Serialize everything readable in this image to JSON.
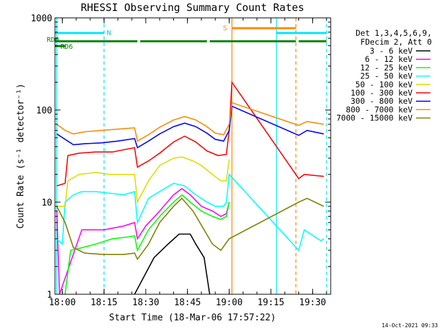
{
  "chart_data": {
    "type": "line",
    "title": "RHESSI Observing Summary Count Rates",
    "xlabel": "Start Time (18-Mar-06 17:57:22)",
    "ylabel": "Count Rate (s⁻¹ detector⁻¹)",
    "y_scale": "log",
    "ylim": [
      1,
      1000
    ],
    "xlim": [
      "17:57:22",
      "19:36:30"
    ],
    "x_ticks": [
      "18:00",
      "18:15",
      "18:30",
      "18:45",
      "19:00",
      "19:15",
      "19:30"
    ],
    "y_ticks": [
      "1",
      "10",
      "100",
      "1000"
    ],
    "legend_header": [
      "Det 1,3,4,5,6,9,",
      "FDecim 2, Att 0"
    ],
    "legend_position": "right",
    "grid": false,
    "series": [
      {
        "name": "3 - 6 keV",
        "color": "#000000",
        "points": [
          [
            "18:26",
            1
          ],
          [
            "18:33",
            2.5
          ],
          [
            "18:38",
            3.5
          ],
          [
            "18:42",
            4.5
          ],
          [
            "18:46",
            4.5
          ],
          [
            "18:48",
            3.5
          ],
          [
            "18:51",
            2.5
          ],
          [
            "18:53",
            1
          ]
        ]
      },
      {
        "name": "6 - 12 keV",
        "color": "#ff00ff",
        "points": [
          [
            "17:58",
            8
          ],
          [
            "17:59",
            1
          ],
          [
            "18:07",
            5
          ],
          [
            "18:15",
            5
          ],
          [
            "18:22",
            5.5
          ],
          [
            "18:26",
            6
          ],
          [
            "18:27",
            4
          ],
          [
            "18:30",
            5.5
          ],
          [
            "18:35",
            8
          ],
          [
            "18:40",
            12
          ],
          [
            "18:43",
            14
          ],
          [
            "18:46",
            12
          ],
          [
            "18:50",
            9
          ],
          [
            "18:54",
            8
          ],
          [
            "18:57",
            7
          ],
          [
            "18:59",
            7.5
          ],
          [
            "19:00",
            10
          ]
        ]
      },
      {
        "name": "12 - 25 keV",
        "color": "#00ff00",
        "points": [
          [
            "18:01",
            1
          ],
          [
            "18:03",
            3
          ],
          [
            "18:07",
            3.2
          ],
          [
            "18:12",
            3.5
          ],
          [
            "18:18",
            4
          ],
          [
            "18:24",
            4.2
          ],
          [
            "18:26",
            4.3
          ],
          [
            "18:27",
            3
          ],
          [
            "18:31",
            5
          ],
          [
            "18:35",
            7
          ],
          [
            "18:40",
            10
          ],
          [
            "18:43",
            12
          ],
          [
            "18:46",
            10
          ],
          [
            "18:50",
            8
          ],
          [
            "18:54",
            7
          ],
          [
            "18:57",
            6.5
          ],
          [
            "18:59",
            7
          ],
          [
            "19:00",
            10
          ]
        ]
      },
      {
        "name": "25 - 50 keV",
        "color": "#00ffff",
        "points": [
          [
            "17:58",
            4
          ],
          [
            "18:00",
            3.5
          ],
          [
            "18:01",
            10
          ],
          [
            "18:04",
            12
          ],
          [
            "18:07",
            13
          ],
          [
            "18:12",
            13
          ],
          [
            "18:17",
            12.5
          ],
          [
            "18:22",
            12
          ],
          [
            "18:26",
            13
          ],
          [
            "18:27",
            6
          ],
          [
            "18:31",
            11
          ],
          [
            "18:35",
            13
          ],
          [
            "18:40",
            16
          ],
          [
            "18:44",
            15
          ],
          [
            "18:48",
            12
          ],
          [
            "18:52",
            10
          ],
          [
            "18:55",
            9
          ],
          [
            "18:58",
            9
          ],
          [
            "18:59",
            10
          ],
          [
            "19:00",
            20
          ],
          [
            "19:25",
            3
          ],
          [
            "19:27",
            5
          ],
          [
            "19:33",
            3.8
          ],
          [
            "19:34",
            4
          ]
        ]
      },
      {
        "name": "50 - 100 keV",
        "color": "#dddd00",
        "points": [
          [
            "17:58",
            9
          ],
          [
            "18:01",
            9
          ],
          [
            "18:02",
            17
          ],
          [
            "18:06",
            20
          ],
          [
            "18:12",
            21
          ],
          [
            "18:17",
            20
          ],
          [
            "18:22",
            20
          ],
          [
            "18:26",
            20
          ],
          [
            "18:27",
            10
          ],
          [
            "18:31",
            17
          ],
          [
            "18:35",
            25
          ],
          [
            "18:40",
            30
          ],
          [
            "18:43",
            31
          ],
          [
            "18:47",
            28
          ],
          [
            "18:50",
            25
          ],
          [
            "18:54",
            20
          ],
          [
            "18:57",
            17
          ],
          [
            "18:59",
            17
          ],
          [
            "19:00",
            29
          ]
        ]
      },
      {
        "name": "100 - 300 keV",
        "color": "#ff0000",
        "points": [
          [
            "17:58",
            15
          ],
          [
            "18:01",
            16
          ],
          [
            "18:02",
            32
          ],
          [
            "18:06",
            34
          ],
          [
            "18:12",
            35
          ],
          [
            "18:18",
            35
          ],
          [
            "18:22",
            37
          ],
          [
            "18:26",
            39
          ],
          [
            "18:27",
            24
          ],
          [
            "18:31",
            28
          ],
          [
            "18:35",
            34
          ],
          [
            "18:40",
            45
          ],
          [
            "18:44",
            52
          ],
          [
            "18:48",
            45
          ],
          [
            "18:52",
            36
          ],
          [
            "18:56",
            32
          ],
          [
            "18:59",
            33
          ],
          [
            "19:00",
            60
          ],
          [
            "19:01",
            200
          ],
          [
            "19:25",
            18
          ],
          [
            "19:27",
            20
          ],
          [
            "19:34",
            19
          ]
        ]
      },
      {
        "name": "300 - 800 keV",
        "color": "#0000ff",
        "points": [
          [
            "17:58",
            55
          ],
          [
            "18:01",
            48
          ],
          [
            "18:04",
            42
          ],
          [
            "18:08",
            43
          ],
          [
            "18:14",
            44
          ],
          [
            "18:20",
            46
          ],
          [
            "18:26",
            49
          ],
          [
            "18:27",
            39
          ],
          [
            "18:31",
            46
          ],
          [
            "18:35",
            55
          ],
          [
            "18:40",
            66
          ],
          [
            "18:44",
            72
          ],
          [
            "18:48",
            66
          ],
          [
            "18:52",
            56
          ],
          [
            "18:55",
            48
          ],
          [
            "18:58",
            46
          ],
          [
            "19:00",
            60
          ],
          [
            "19:01",
            110
          ],
          [
            "19:25",
            53
          ],
          [
            "19:28",
            60
          ],
          [
            "19:34",
            55
          ]
        ]
      },
      {
        "name": "800 - 7000 keV",
        "color": "#ff8800",
        "points": [
          [
            "17:58",
            70
          ],
          [
            "18:01",
            60
          ],
          [
            "18:04",
            55
          ],
          [
            "18:08",
            58
          ],
          [
            "18:14",
            60
          ],
          [
            "18:20",
            62
          ],
          [
            "18:26",
            64
          ],
          [
            "18:27",
            46
          ],
          [
            "18:31",
            54
          ],
          [
            "18:35",
            65
          ],
          [
            "18:40",
            78
          ],
          [
            "18:44",
            85
          ],
          [
            "18:48",
            78
          ],
          [
            "18:52",
            66
          ],
          [
            "18:55",
            56
          ],
          [
            "18:58",
            54
          ],
          [
            "19:00",
            70
          ],
          [
            "19:01",
            120
          ],
          [
            "19:25",
            68
          ],
          [
            "19:28",
            75
          ],
          [
            "19:34",
            70
          ]
        ]
      },
      {
        "name": "7000 - 15000 keV",
        "color": "#808000",
        "points": [
          [
            "17:58",
            9
          ],
          [
            "18:01",
            6
          ],
          [
            "18:04",
            3.2
          ],
          [
            "18:08",
            2.8
          ],
          [
            "18:15",
            2.7
          ],
          [
            "18:22",
            2.7
          ],
          [
            "18:26",
            2.8
          ],
          [
            "18:27",
            2.4
          ],
          [
            "18:31",
            3.5
          ],
          [
            "18:35",
            6
          ],
          [
            "18:40",
            9
          ],
          [
            "18:43",
            11
          ],
          [
            "18:47",
            8
          ],
          [
            "18:51",
            5
          ],
          [
            "18:54",
            3.5
          ],
          [
            "18:57",
            3
          ],
          [
            "19:00",
            4
          ],
          [
            "19:25",
            10
          ],
          [
            "19:28",
            11
          ],
          [
            "19:34",
            9
          ]
        ]
      }
    ],
    "annotations": {
      "N_label": "N",
      "S_label": "S",
      "RD0_label": "RD0",
      "RD6_label": "RD6",
      "night_bars": [
        [
          "17:57:30",
          "18:15"
        ],
        [
          "19:17",
          "19:35"
        ]
      ],
      "saa_bar": [
        "19:01",
        "19:24"
      ],
      "rd6_bars": [
        [
          "17:57:30",
          "18:27"
        ],
        [
          "18:28",
          "18:52"
        ],
        [
          "18:53",
          "19:24"
        ],
        [
          "19:25",
          "19:35"
        ]
      ],
      "vlines_solid_cyan": [
        "17:58",
        "19:17"
      ],
      "vlines_dashed_cyan": [
        "18:15",
        "19:35"
      ],
      "vline_solid_orange": "19:01",
      "vline_dashed_orange": "19:24"
    },
    "footer_date": "14-Oct-2021 09:33"
  }
}
